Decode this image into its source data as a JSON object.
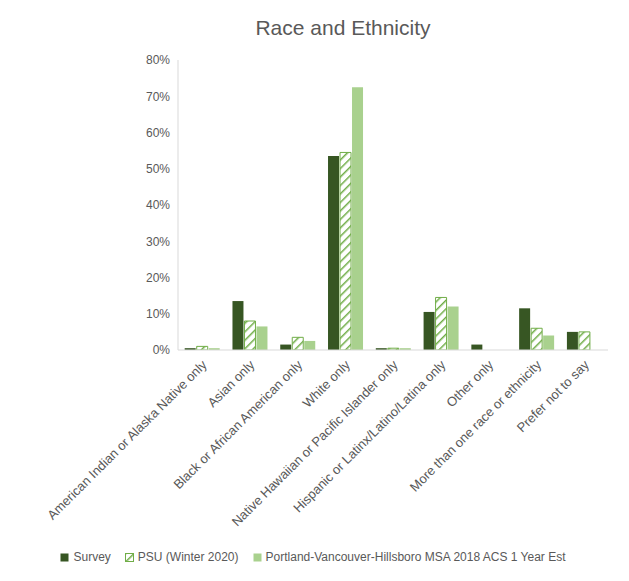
{
  "chart_data": {
    "type": "bar",
    "title": "Race and Ethnicity",
    "categories": [
      "American Indian or Alaska Native only",
      "Asian only",
      "Black or African American only",
      "White only",
      "Native Hawaiian or Pacific Islander only",
      "Hispanic or Latinx/Latino/Latina only",
      "Other only",
      "More than one race or ethnicity",
      "Prefer not to say"
    ],
    "series": [
      {
        "name": "Survey",
        "color": "#375623",
        "values": [
          0.5,
          13.5,
          1.5,
          53.5,
          0.5,
          10.5,
          1.5,
          11.5,
          5
        ]
      },
      {
        "name": "PSU (Winter 2020)",
        "color": "#70ad47",
        "values": [
          1,
          8,
          3.5,
          54.5,
          0.5,
          14.5,
          null,
          6,
          5
        ]
      },
      {
        "name": "Portland-Vancouver-Hillsboro MSA 2018 ACS 1 Year Est",
        "color": "#a9d18e",
        "values": [
          0.5,
          6.5,
          2.5,
          72.5,
          0.5,
          12,
          null,
          4,
          null
        ]
      }
    ],
    "ylim": [
      0,
      80
    ],
    "yticks": [
      {
        "value": 0,
        "label": "0%"
      },
      {
        "value": 10,
        "label": "10%"
      },
      {
        "value": 20,
        "label": "20%"
      },
      {
        "value": 30,
        "label": "30%"
      },
      {
        "value": 40,
        "label": "40%"
      },
      {
        "value": 50,
        "label": "50%"
      },
      {
        "value": 60,
        "label": "60%"
      },
      {
        "value": 70,
        "label": "70%"
      },
      {
        "value": 80,
        "label": "80%"
      }
    ],
    "grid": false,
    "legend": "bottom"
  }
}
